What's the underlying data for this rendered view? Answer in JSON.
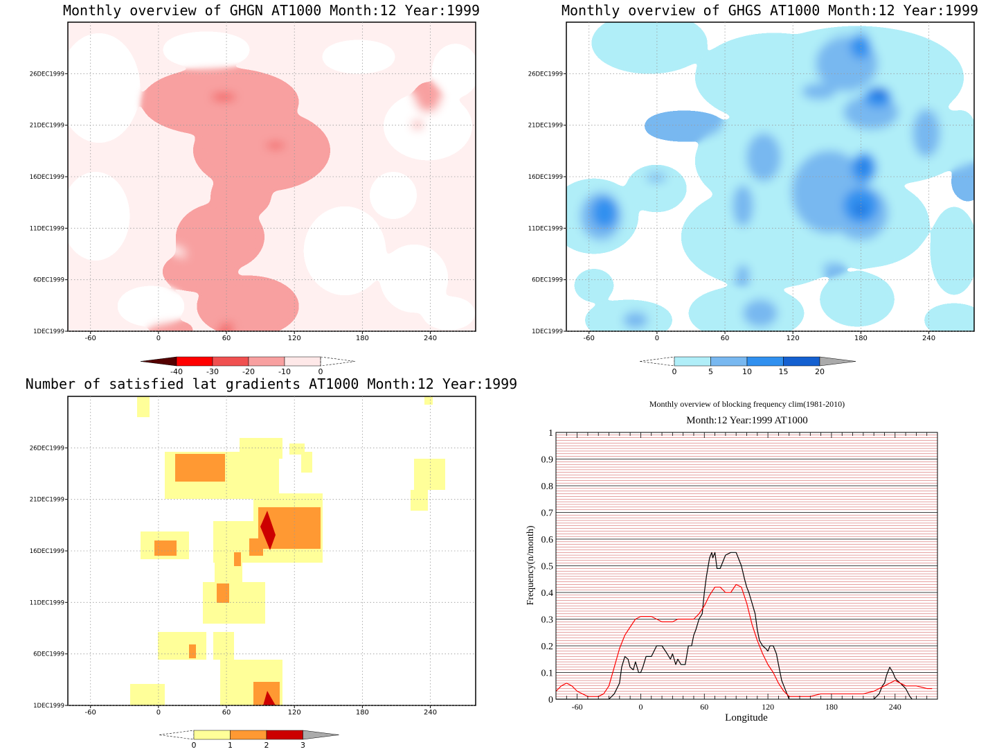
{
  "chart_data": [
    {
      "type": "heatmap",
      "title": "Monthly overview of GHGN AT1000 Month:12 Year:1999",
      "x_ticks": [
        "-60",
        "0",
        "60",
        "120",
        "180",
        "240"
      ],
      "x_tick_values": [
        -60,
        0,
        60,
        120,
        180,
        240
      ],
      "xlim": [
        -80,
        280
      ],
      "y_ticks": [
        "1DEC1999",
        "6DEC1999",
        "11DEC1999",
        "16DEC1999",
        "21DEC1999",
        "26DEC1999"
      ],
      "y_tick_values": [
        1,
        6,
        11,
        16,
        21,
        26
      ],
      "ylim": [
        1,
        31
      ],
      "colorbar": {
        "labels": [
          "-40",
          "-30",
          "-20",
          "-10",
          "0"
        ],
        "colors": [
          "#550000",
          "#ff0000",
          "#f05050",
          "#f8a0a0",
          "#fee8e8"
        ],
        "open_end": "right"
      },
      "grid": true
    },
    {
      "type": "heatmap",
      "title": "Monthly overview of GHGS AT1000 Month:12 Year:1999",
      "x_ticks": [
        "-60",
        "0",
        "60",
        "120",
        "180",
        "240"
      ],
      "x_tick_values": [
        -60,
        0,
        60,
        120,
        180,
        240
      ],
      "xlim": [
        -80,
        280
      ],
      "y_ticks": [
        "1DEC1999",
        "6DEC1999",
        "11DEC1999",
        "16DEC1999",
        "21DEC1999",
        "26DEC1999"
      ],
      "y_tick_values": [
        1,
        6,
        11,
        16,
        21,
        26
      ],
      "ylim": [
        1,
        31
      ],
      "colorbar": {
        "labels": [
          "0",
          "5",
          "10",
          "15",
          "20"
        ],
        "colors": [
          "#b0eef8",
          "#78b8f0",
          "#3090ef",
          "#1460d0",
          "#aaaaaa"
        ],
        "open_end": "left"
      },
      "grid": true
    },
    {
      "type": "heatmap",
      "title": "Number of satisfied lat gradients AT1000 Month:12 Year:1999",
      "x_ticks": [
        "-60",
        "0",
        "60",
        "120",
        "180",
        "240"
      ],
      "x_tick_values": [
        -60,
        0,
        60,
        120,
        180,
        240
      ],
      "xlim": [
        -80,
        280
      ],
      "y_ticks": [
        "1DEC1999",
        "6DEC1999",
        "11DEC1999",
        "16DEC1999",
        "21DEC1999",
        "26DEC1999"
      ],
      "y_tick_values": [
        1,
        6,
        11,
        16,
        21,
        26
      ],
      "ylim": [
        1,
        31
      ],
      "colorbar": {
        "labels": [
          "0",
          "1",
          "2",
          "3"
        ],
        "colors": [
          "#ffff99",
          "#ff9933",
          "#cc0000",
          "#aaaaaa"
        ],
        "open_end": "left"
      },
      "grid": true
    },
    {
      "type": "line",
      "title": "Monthly overview of blocking frequency clim(1981-2010)",
      "subtitle": "Month:12 Year:1999  AT1000",
      "xlabel": "Longitude",
      "ylabel": "Frequency(n/month)",
      "xlim": [
        -80,
        280
      ],
      "ylim": [
        0,
        1
      ],
      "x_ticks": [
        "-60",
        "0",
        "60",
        "120",
        "180",
        "240"
      ],
      "x_tick_values": [
        -60,
        0,
        60,
        120,
        180,
        240
      ],
      "y_ticks": [
        "0",
        "0.1",
        "0.2",
        "0.3",
        "0.4",
        "0.5",
        "0.6",
        "0.7",
        "0.8",
        "0.9",
        "1"
      ],
      "y_tick_values": [
        0,
        0.1,
        0.2,
        0.3,
        0.4,
        0.5,
        0.6,
        0.7,
        0.8,
        0.9,
        1
      ],
      "grid": true,
      "series": [
        {
          "color": "#000000",
          "x": [
            -80,
            -30,
            -25,
            -20,
            -18,
            -15,
            -12,
            -10,
            -7,
            -5,
            -2,
            0,
            2,
            5,
            10,
            15,
            20,
            25,
            28,
            30,
            33,
            35,
            38,
            42,
            45,
            48,
            50,
            52,
            55,
            58,
            60,
            62,
            65,
            67,
            68,
            70,
            72,
            75,
            80,
            85,
            88,
            90,
            92,
            95,
            98,
            100,
            102,
            105,
            108,
            110,
            112,
            115,
            118,
            120,
            122,
            125,
            128,
            130,
            133,
            135,
            138,
            140,
            220,
            225,
            228,
            230,
            232,
            235,
            238,
            240,
            242,
            245,
            250,
            254,
            256
          ],
          "y": [
            0,
            0,
            0.02,
            0.06,
            0.12,
            0.16,
            0.15,
            0.12,
            0.11,
            0.14,
            0.1,
            0.1,
            0.12,
            0.16,
            0.16,
            0.2,
            0.2,
            0.17,
            0.15,
            0.17,
            0.13,
            0.15,
            0.13,
            0.13,
            0.2,
            0.2,
            0.24,
            0.26,
            0.3,
            0.32,
            0.4,
            0.46,
            0.53,
            0.55,
            0.53,
            0.55,
            0.49,
            0.49,
            0.54,
            0.55,
            0.55,
            0.55,
            0.53,
            0.5,
            0.45,
            0.42,
            0.4,
            0.36,
            0.32,
            0.26,
            0.22,
            0.2,
            0.19,
            0.18,
            0.2,
            0.2,
            0.17,
            0.13,
            0.07,
            0.05,
            0.02,
            0,
            0,
            0.02,
            0.05,
            0.06,
            0.09,
            0.12,
            0.1,
            0.08,
            0.07,
            0.06,
            0.04,
            0.01,
            0
          ]
        },
        {
          "color": "#ff0000",
          "x": [
            -80,
            -75,
            -70,
            -65,
            -60,
            -55,
            -50,
            -45,
            -40,
            -35,
            -30,
            -25,
            -20,
            -15,
            -10,
            -5,
            0,
            5,
            10,
            15,
            20,
            25,
            30,
            35,
            40,
            45,
            50,
            55,
            60,
            65,
            70,
            75,
            80,
            85,
            90,
            95,
            100,
            105,
            110,
            115,
            120,
            125,
            130,
            135,
            140,
            145,
            150,
            160,
            170,
            180,
            190,
            200,
            210,
            220,
            230,
            235,
            240,
            245,
            250,
            260,
            270,
            275
          ],
          "y": [
            0.03,
            0.05,
            0.06,
            0.05,
            0.03,
            0.02,
            0.01,
            0.01,
            0.01,
            0.02,
            0.05,
            0.12,
            0.19,
            0.24,
            0.27,
            0.3,
            0.31,
            0.31,
            0.31,
            0.3,
            0.29,
            0.29,
            0.29,
            0.3,
            0.3,
            0.3,
            0.3,
            0.32,
            0.35,
            0.39,
            0.42,
            0.42,
            0.4,
            0.4,
            0.43,
            0.42,
            0.36,
            0.28,
            0.22,
            0.17,
            0.13,
            0.1,
            0.06,
            0.03,
            0.01,
            0.01,
            0.01,
            0.01,
            0.02,
            0.02,
            0.02,
            0.02,
            0.02,
            0.03,
            0.05,
            0.06,
            0.07,
            0.06,
            0.05,
            0.05,
            0.04,
            0.04
          ]
        }
      ]
    }
  ]
}
